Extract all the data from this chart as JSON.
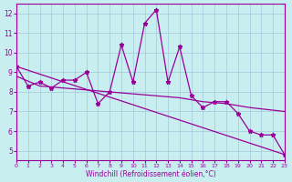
{
  "xlabel": "Windchill (Refroidissement éolien,°C)",
  "ylabel": "",
  "bg_color": "#c8eef0",
  "grid_color": "#a0c8d8",
  "line_color": "#990099",
  "xlim": [
    0,
    23
  ],
  "ylim": [
    4.5,
    12.5
  ],
  "yticks": [
    5,
    6,
    7,
    8,
    9,
    10,
    11,
    12
  ],
  "xticks": [
    0,
    1,
    2,
    3,
    4,
    5,
    6,
    7,
    8,
    9,
    10,
    11,
    12,
    13,
    14,
    15,
    16,
    17,
    18,
    19,
    20,
    21,
    22,
    23
  ],
  "series1_x": [
    0,
    1,
    2,
    3,
    4,
    5,
    6,
    7,
    8,
    9,
    10,
    11,
    12,
    13,
    14,
    15,
    16,
    17,
    18,
    19,
    20,
    21,
    22,
    23
  ],
  "series1_y": [
    9.3,
    8.3,
    8.5,
    8.2,
    8.6,
    8.6,
    9.0,
    7.4,
    8.0,
    10.4,
    8.5,
    11.5,
    12.2,
    8.5,
    10.3,
    7.8,
    7.2,
    7.5,
    7.5,
    6.9,
    6.0,
    5.8,
    5.8,
    4.8
  ],
  "series2_x": [
    0,
    23
  ],
  "series2_y": [
    9.3,
    4.8
  ],
  "series3_x": [
    0,
    2,
    4,
    6,
    8,
    10,
    12,
    14,
    16,
    18,
    20,
    23
  ],
  "series3_y": [
    8.8,
    8.3,
    8.2,
    8.1,
    8.0,
    7.9,
    7.8,
    7.7,
    7.5,
    7.4,
    7.2,
    7.0
  ]
}
